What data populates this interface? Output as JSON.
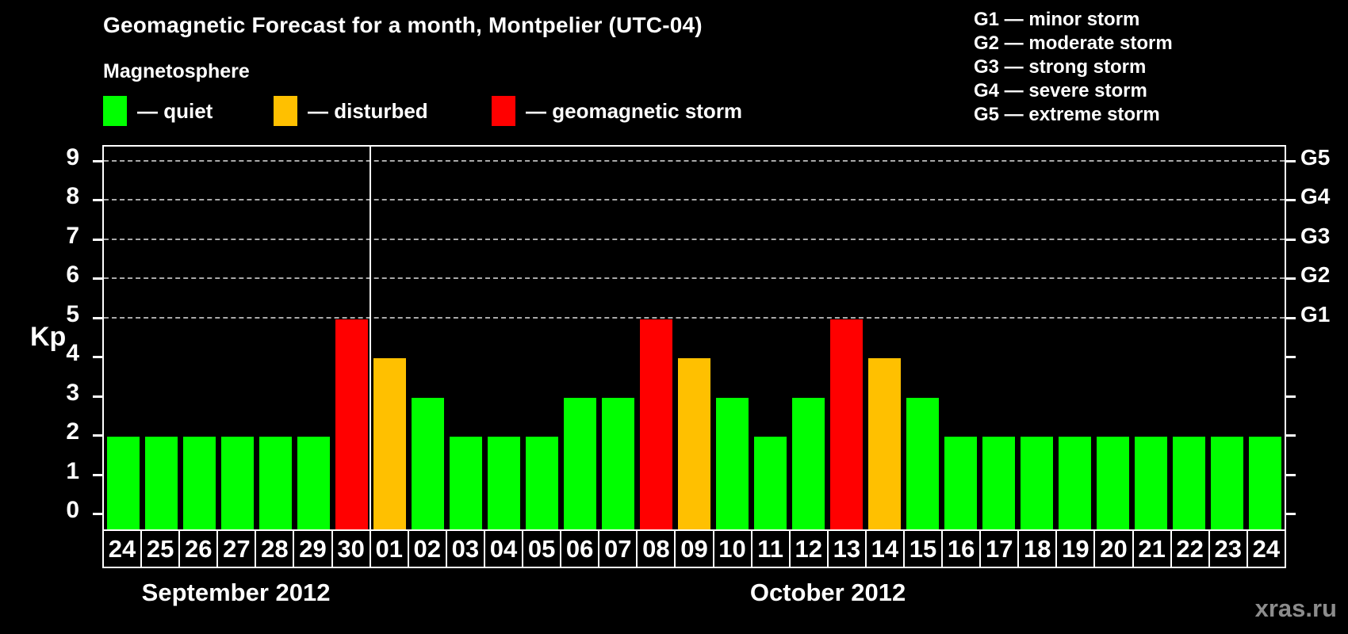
{
  "title": "Geomagnetic Forecast for a month, Montpelier (UTC-04)",
  "subtitle": "Magnetosphere",
  "watermark": "xras.ru",
  "colors": {
    "quiet": "#00ff00",
    "disturbed": "#ffc000",
    "storm": "#ff0000",
    "background": "#000000",
    "text": "#ffffff",
    "grid": "#a9a9a9",
    "watermark": "#8c8c8c"
  },
  "legend": {
    "items": [
      {
        "level": "quiet",
        "label": "— quiet"
      },
      {
        "level": "disturbed",
        "label": "— disturbed"
      },
      {
        "level": "storm",
        "label": "— geomagnetic storm"
      }
    ]
  },
  "g_legend": [
    "G1 — minor storm",
    "G2 — moderate storm",
    "G3 — strong storm",
    "G4 — severe storm",
    "G5 — extreme storm"
  ],
  "axes": {
    "y_label": "Kp",
    "y_ticks": [
      0,
      1,
      2,
      3,
      4,
      5,
      6,
      7,
      8,
      9
    ],
    "right_labels": [
      {
        "kp": 5,
        "label": "G1"
      },
      {
        "kp": 6,
        "label": "G2"
      },
      {
        "kp": 7,
        "label": "G3"
      },
      {
        "kp": 8,
        "label": "G4"
      },
      {
        "kp": 9,
        "label": "G5"
      }
    ]
  },
  "months": [
    {
      "label": "September 2012",
      "days": 7
    },
    {
      "label": "October 2012",
      "days": 24
    }
  ],
  "days": [
    {
      "label": "24",
      "month": "September 2012",
      "kp": 2,
      "level": "quiet"
    },
    {
      "label": "25",
      "month": "September 2012",
      "kp": 2,
      "level": "quiet"
    },
    {
      "label": "26",
      "month": "September 2012",
      "kp": 2,
      "level": "quiet"
    },
    {
      "label": "27",
      "month": "September 2012",
      "kp": 2,
      "level": "quiet"
    },
    {
      "label": "28",
      "month": "September 2012",
      "kp": 2,
      "level": "quiet"
    },
    {
      "label": "29",
      "month": "September 2012",
      "kp": 2,
      "level": "quiet"
    },
    {
      "label": "30",
      "month": "September 2012",
      "kp": 5,
      "level": "storm"
    },
    {
      "label": "01",
      "month": "October 2012",
      "kp": 4,
      "level": "disturbed"
    },
    {
      "label": "02",
      "month": "October 2012",
      "kp": 3,
      "level": "quiet"
    },
    {
      "label": "03",
      "month": "October 2012",
      "kp": 2,
      "level": "quiet"
    },
    {
      "label": "04",
      "month": "October 2012",
      "kp": 2,
      "level": "quiet"
    },
    {
      "label": "05",
      "month": "October 2012",
      "kp": 2,
      "level": "quiet"
    },
    {
      "label": "06",
      "month": "October 2012",
      "kp": 3,
      "level": "quiet"
    },
    {
      "label": "07",
      "month": "October 2012",
      "kp": 3,
      "level": "quiet"
    },
    {
      "label": "08",
      "month": "October 2012",
      "kp": 5,
      "level": "storm"
    },
    {
      "label": "09",
      "month": "October 2012",
      "kp": 4,
      "level": "disturbed"
    },
    {
      "label": "10",
      "month": "October 2012",
      "kp": 3,
      "level": "quiet"
    },
    {
      "label": "11",
      "month": "October 2012",
      "kp": 2,
      "level": "quiet"
    },
    {
      "label": "12",
      "month": "October 2012",
      "kp": 3,
      "level": "quiet"
    },
    {
      "label": "13",
      "month": "October 2012",
      "kp": 5,
      "level": "storm"
    },
    {
      "label": "14",
      "month": "October 2012",
      "kp": 4,
      "level": "disturbed"
    },
    {
      "label": "15",
      "month": "October 2012",
      "kp": 3,
      "level": "quiet"
    },
    {
      "label": "16",
      "month": "October 2012",
      "kp": 2,
      "level": "quiet"
    },
    {
      "label": "17",
      "month": "October 2012",
      "kp": 2,
      "level": "quiet"
    },
    {
      "label": "18",
      "month": "October 2012",
      "kp": 2,
      "level": "quiet"
    },
    {
      "label": "19",
      "month": "October 2012",
      "kp": 2,
      "level": "quiet"
    },
    {
      "label": "20",
      "month": "October 2012",
      "kp": 2,
      "level": "quiet"
    },
    {
      "label": "21",
      "month": "October 2012",
      "kp": 2,
      "level": "quiet"
    },
    {
      "label": "22",
      "month": "October 2012",
      "kp": 2,
      "level": "quiet"
    },
    {
      "label": "23",
      "month": "October 2012",
      "kp": 2,
      "level": "quiet"
    },
    {
      "label": "24",
      "month": "October 2012",
      "kp": 2,
      "level": "quiet"
    }
  ],
  "chart_data": {
    "type": "bar",
    "title": "Geomagnetic Forecast for a month, Montpelier (UTC-04)",
    "xlabel": "",
    "ylabel": "Kp",
    "ylim": [
      0,
      9
    ],
    "grid": "horizontal dashed lines at Kp 5,6,7,8,9 (G1–G5)",
    "legend_position": "top",
    "right_axis_labels": [
      "G1",
      "G2",
      "G3",
      "G4",
      "G5"
    ],
    "categories": [
      "Sep 24",
      "Sep 25",
      "Sep 26",
      "Sep 27",
      "Sep 28",
      "Sep 29",
      "Sep 30",
      "Oct 01",
      "Oct 02",
      "Oct 03",
      "Oct 04",
      "Oct 05",
      "Oct 06",
      "Oct 07",
      "Oct 08",
      "Oct 09",
      "Oct 10",
      "Oct 11",
      "Oct 12",
      "Oct 13",
      "Oct 14",
      "Oct 15",
      "Oct 16",
      "Oct 17",
      "Oct 18",
      "Oct 19",
      "Oct 20",
      "Oct 21",
      "Oct 22",
      "Oct 23",
      "Oct 24"
    ],
    "values": [
      2,
      2,
      2,
      2,
      2,
      2,
      5,
      4,
      3,
      2,
      2,
      2,
      3,
      3,
      5,
      4,
      3,
      2,
      3,
      5,
      4,
      3,
      2,
      2,
      2,
      2,
      2,
      2,
      2,
      2,
      2
    ],
    "levels": [
      "quiet",
      "quiet",
      "quiet",
      "quiet",
      "quiet",
      "quiet",
      "storm",
      "disturbed",
      "quiet",
      "quiet",
      "quiet",
      "quiet",
      "quiet",
      "quiet",
      "storm",
      "disturbed",
      "quiet",
      "quiet",
      "quiet",
      "storm",
      "disturbed",
      "quiet",
      "quiet",
      "quiet",
      "quiet",
      "quiet",
      "quiet",
      "quiet",
      "quiet",
      "quiet",
      "quiet"
    ]
  }
}
